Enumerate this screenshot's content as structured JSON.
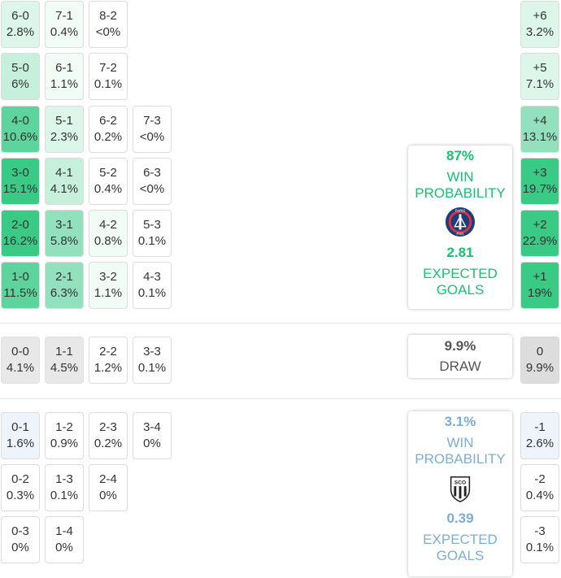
{
  "home_win_scores": [
    {
      "score": "6-0",
      "pct": "2.8%"
    },
    {
      "score": "7-1",
      "pct": "0.4%"
    },
    {
      "score": "8-2",
      "pct": "<0%"
    },
    {
      "score": "5-0",
      "pct": "6%"
    },
    {
      "score": "6-1",
      "pct": "1.1%"
    },
    {
      "score": "7-2",
      "pct": "0.1%"
    },
    {
      "score": "4-0",
      "pct": "10.6%"
    },
    {
      "score": "5-1",
      "pct": "2.3%"
    },
    {
      "score": "6-2",
      "pct": "0.2%"
    },
    {
      "score": "7-3",
      "pct": "<0%"
    },
    {
      "score": "3-0",
      "pct": "15.1%"
    },
    {
      "score": "4-1",
      "pct": "4.1%"
    },
    {
      "score": "5-2",
      "pct": "0.4%"
    },
    {
      "score": "6-3",
      "pct": "<0%"
    },
    {
      "score": "2-0",
      "pct": "16.2%"
    },
    {
      "score": "3-1",
      "pct": "5.8%"
    },
    {
      "score": "4-2",
      "pct": "0.8%"
    },
    {
      "score": "5-3",
      "pct": "0.1%"
    },
    {
      "score": "1-0",
      "pct": "11.5%"
    },
    {
      "score": "2-1",
      "pct": "6.3%"
    },
    {
      "score": "3-2",
      "pct": "1.1%"
    },
    {
      "score": "4-3",
      "pct": "0.1%"
    }
  ],
  "draw_scores": [
    {
      "score": "0-0",
      "pct": "4.1%"
    },
    {
      "score": "1-1",
      "pct": "4.5%"
    },
    {
      "score": "2-2",
      "pct": "1.2%"
    },
    {
      "score": "3-3",
      "pct": "0.1%"
    }
  ],
  "away_win_scores": [
    {
      "score": "0-1",
      "pct": "1.6%"
    },
    {
      "score": "1-2",
      "pct": "0.9%"
    },
    {
      "score": "2-3",
      "pct": "0.2%"
    },
    {
      "score": "3-4",
      "pct": "0%"
    },
    {
      "score": "0-2",
      "pct": "0.3%"
    },
    {
      "score": "1-3",
      "pct": "0.1%"
    },
    {
      "score": "2-4",
      "pct": "0%"
    },
    {
      "score": "0-3",
      "pct": "0%"
    },
    {
      "score": "1-4",
      "pct": "0%"
    }
  ],
  "margins": [
    {
      "margin": "+6",
      "pct": "3.2%"
    },
    {
      "margin": "+5",
      "pct": "7.1%"
    },
    {
      "margin": "+4",
      "pct": "13.1%"
    },
    {
      "margin": "+3",
      "pct": "19.7%"
    },
    {
      "margin": "+2",
      "pct": "22.9%"
    },
    {
      "margin": "+1",
      "pct": "19%"
    },
    {
      "margin": "0",
      "pct": "9.9%"
    },
    {
      "margin": "-1",
      "pct": "2.6%"
    },
    {
      "margin": "-2",
      "pct": "0.4%"
    },
    {
      "margin": "-3",
      "pct": "0.1%"
    }
  ],
  "home_card": {
    "win_pct": "87%",
    "win_label_1": "WIN",
    "win_label_2": "PROBABILITY",
    "xg": "2.81",
    "xg_label_1": "EXPECTED",
    "xg_label_2": "GOALS",
    "logo_text": "PARIS",
    "logo_initials": "PSG"
  },
  "draw_card": {
    "pct": "9.9%",
    "label": "DRAW"
  },
  "away_card": {
    "win_pct": "3.1%",
    "win_label_1": "WIN",
    "win_label_2": "PROBABILITY",
    "xg": "0.39",
    "xg_label_1": "EXPECTED",
    "xg_label_2": "GOALS",
    "logo_text": "SCO"
  },
  "colors": {
    "home": "#16c172",
    "away": "#7aaed6",
    "draw": "#555555"
  }
}
